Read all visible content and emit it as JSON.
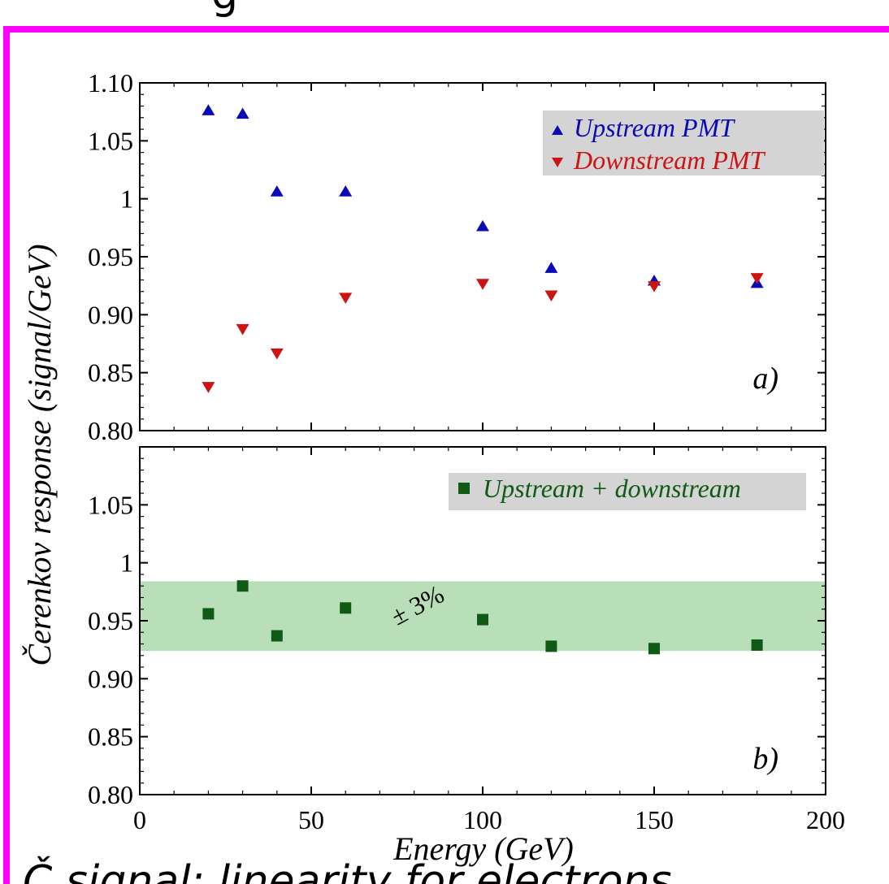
{
  "slide": {
    "top_text": "g",
    "bottom_text": "Č signal: linearity for electrons"
  },
  "colors": {
    "frame_border": "#ff00ff",
    "upstream": "#0a0ab4",
    "downstream": "#cc1414",
    "combined": "#0f5a14",
    "band": "#b9dfb9",
    "legend_bg": "#d4d4d4"
  },
  "chart_data": [
    {
      "type": "scatter",
      "panel_label": "a)",
      "xlim": [
        0,
        200
      ],
      "ylim": [
        0.8,
        1.1
      ],
      "yticks": [
        "0.80",
        "0.85",
        "0.90",
        "0.95",
        "1",
        "1.05",
        "1.10"
      ],
      "ytick_values": [
        0.8,
        0.85,
        0.9,
        0.95,
        1.0,
        1.05,
        1.1
      ],
      "legend_position": "top-right",
      "series": [
        {
          "name": "Upstream PMT",
          "marker": "triangle-up",
          "x": [
            20,
            30,
            40,
            60,
            100,
            120,
            150,
            180
          ],
          "y": [
            1.076,
            1.073,
            1.006,
            1.006,
            0.976,
            0.94,
            0.929,
            0.927
          ]
        },
        {
          "name": "Downstream PMT",
          "marker": "triangle-down",
          "x": [
            20,
            30,
            40,
            60,
            100,
            120,
            150,
            180
          ],
          "y": [
            0.838,
            0.888,
            0.867,
            0.915,
            0.927,
            0.917,
            0.925,
            0.932
          ]
        }
      ]
    },
    {
      "type": "scatter",
      "panel_label": "b)",
      "xlim": [
        0,
        200
      ],
      "ylim": [
        0.8,
        1.1
      ],
      "yticks": [
        "0.80",
        "0.85",
        "0.90",
        "0.95",
        "1",
        "1.05"
      ],
      "ytick_values": [
        0.8,
        0.85,
        0.9,
        0.95,
        1.0,
        1.05
      ],
      "xticks": [
        "0",
        "50",
        "100",
        "150",
        "200"
      ],
      "xtick_values": [
        0,
        50,
        100,
        150,
        200
      ],
      "xlabel": "Energy (GeV)",
      "ylabel": "Čerenkov response (signal/GeV)",
      "legend_position": "top-right",
      "band": {
        "label": "± 3%",
        "y_low": 0.924,
        "y_high": 0.984
      },
      "series": [
        {
          "name": "Upstream + downstream",
          "marker": "square",
          "x": [
            20,
            30,
            40,
            60,
            100,
            120,
            150,
            180
          ],
          "y": [
            0.956,
            0.98,
            0.937,
            0.961,
            0.951,
            0.928,
            0.926,
            0.929
          ]
        }
      ]
    }
  ]
}
